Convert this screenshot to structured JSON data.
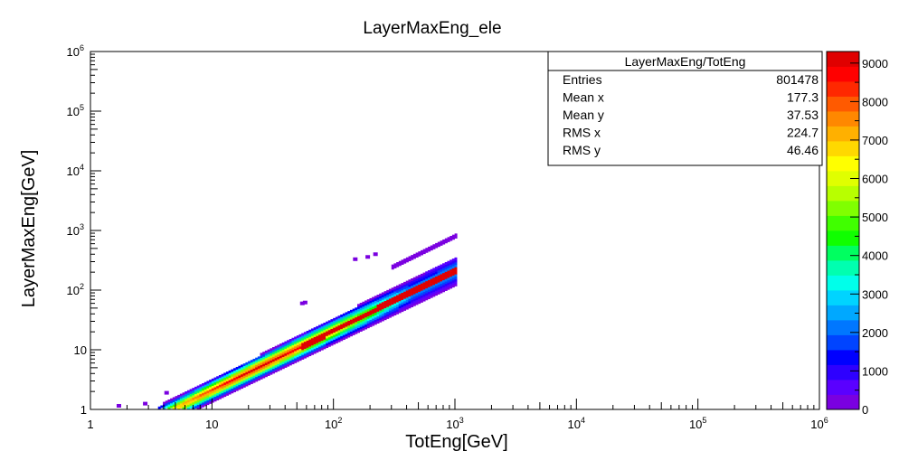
{
  "chart_data": {
    "type": "heatmap",
    "title": "LayerMaxEng_ele",
    "xlabel": "TotEng[GeV]",
    "ylabel": "LayerMaxEng[GeV]",
    "xscale": "log",
    "yscale": "log",
    "xlim": [
      1,
      1000000
    ],
    "ylim": [
      1,
      1000000
    ],
    "x_ticks": [
      {
        "base": "1",
        "exp": ""
      },
      {
        "base": "10",
        "exp": ""
      },
      {
        "base": "10",
        "exp": "2"
      },
      {
        "base": "10",
        "exp": "3"
      },
      {
        "base": "10",
        "exp": "4"
      },
      {
        "base": "10",
        "exp": "5"
      },
      {
        "base": "10",
        "exp": "6"
      }
    ],
    "y_ticks": [
      {
        "base": "1",
        "exp": ""
      },
      {
        "base": "10",
        "exp": ""
      },
      {
        "base": "10",
        "exp": "2"
      },
      {
        "base": "10",
        "exp": "3"
      },
      {
        "base": "10",
        "exp": "4"
      },
      {
        "base": "10",
        "exp": "5"
      },
      {
        "base": "10",
        "exp": "6"
      }
    ],
    "grid": false,
    "stats": {
      "name": "LayerMaxEng/TotEng",
      "rows": [
        {
          "label": "Entries",
          "value": "801478"
        },
        {
          "label": "Mean x",
          "value": "177.3"
        },
        {
          "label": "Mean y",
          "value": "37.53"
        },
        {
          "label": "RMS x",
          "value": "224.7"
        },
        {
          "label": "RMS y",
          "value": "46.46"
        }
      ]
    },
    "colorbar": {
      "min": 0,
      "max": 9300,
      "tick_labels": [
        "0",
        "1000",
        "2000",
        "3000",
        "4000",
        "5000",
        "6000",
        "7000",
        "8000",
        "9000"
      ],
      "palette": [
        "#7a00e0",
        "#5a00ff",
        "#2e00ff",
        "#0000ff",
        "#0044ff",
        "#0077ff",
        "#00a8ff",
        "#00d4ff",
        "#00ffea",
        "#00ffb0",
        "#00ff60",
        "#10ff00",
        "#40ff00",
        "#80ff00",
        "#b8ff00",
        "#e0ff00",
        "#ffff00",
        "#ffd800",
        "#ffb000",
        "#ff8800",
        "#ff5a00",
        "#ff2800",
        "#ff0000",
        "#e00000"
      ]
    },
    "distribution": {
      "main_band": {
        "ratio": 0.205,
        "x_range": [
          1.5,
          1000
        ],
        "cells": 60
      },
      "upper_band": {
        "ratio": 0.78,
        "x_range": [
          300,
          1000
        ]
      },
      "scattered_points": [
        [
          1.7,
          1.15
        ],
        [
          2.8,
          1.25
        ],
        [
          4.2,
          1.9
        ],
        [
          55,
          60
        ],
        [
          58,
          62
        ],
        [
          150,
          330
        ],
        [
          190,
          360
        ],
        [
          220,
          400
        ]
      ]
    }
  }
}
